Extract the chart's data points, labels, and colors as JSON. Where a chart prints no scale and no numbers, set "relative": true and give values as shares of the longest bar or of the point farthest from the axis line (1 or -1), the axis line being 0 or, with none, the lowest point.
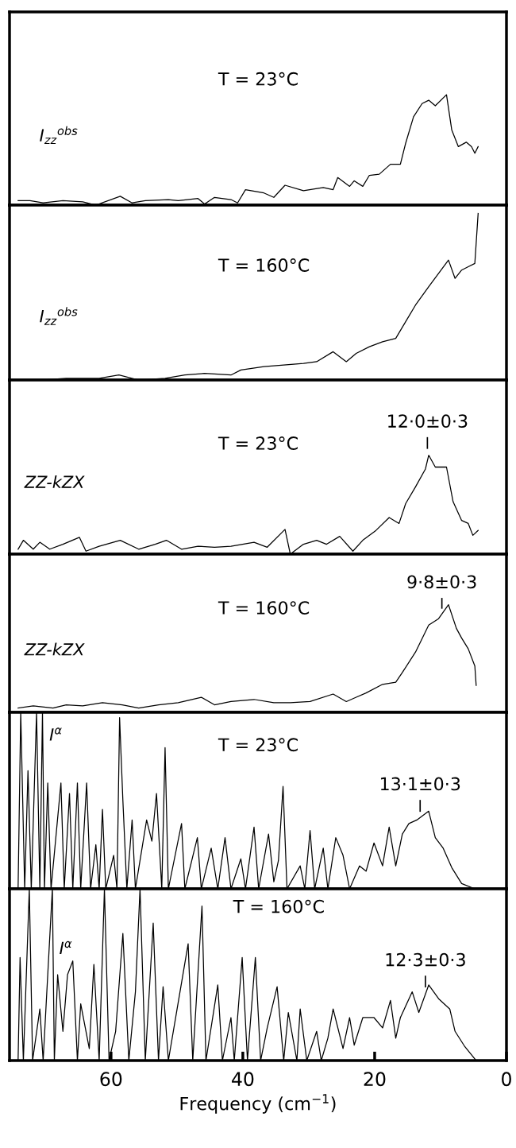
{
  "chart_data": [
    {
      "type": "line",
      "relative": true,
      "color": "#000000",
      "xlim": [
        75.4,
        0
      ],
      "tick_labels": false,
      "annotations": [
        "T = 23°C",
        "I$_{zz}$$^{obs}$"
      ],
      "x": [
        74.1,
        72.3,
        70.3,
        67.3,
        64.3,
        62.3,
        58.6,
        56.8,
        54.8,
        51.3,
        49.8,
        46.8,
        45.8,
        44.3,
        41.8,
        40.8,
        39.6,
        36.8,
        35.3,
        33.6,
        30.8,
        27.8,
        26.3,
        25.6,
        23.8,
        23.1,
        21.8,
        20.8,
        19.3,
        17.6,
        16.1,
        15.3,
        14.1,
        12.8,
        11.8,
        10.8,
        9.1,
        8.3,
        7.3,
        6.1,
        5.3,
        4.8,
        4.3
      ],
      "values": [
        0.04,
        0.04,
        0.02,
        0.04,
        0.03,
        0.0,
        0.08,
        0.02,
        0.04,
        0.05,
        0.04,
        0.06,
        0.01,
        0.07,
        0.05,
        0.02,
        0.14,
        0.11,
        0.07,
        0.18,
        0.13,
        0.16,
        0.14,
        0.25,
        0.17,
        0.22,
        0.17,
        0.27,
        0.28,
        0.37,
        0.37,
        0.56,
        0.8,
        0.92,
        0.95,
        0.9,
        1.0,
        0.68,
        0.53,
        0.57,
        0.53,
        0.47,
        0.53
      ]
    },
    {
      "type": "line",
      "relative": true,
      "color": "#000000",
      "xlim": [
        75.4,
        0
      ],
      "tick_labels": false,
      "annotations": [
        "T = 160°C",
        "I$_{zz}$$^{obs}$"
      ],
      "x": [
        74.1,
        70.8,
        66.8,
        61.8,
        58.8,
        55.8,
        51.8,
        48.8,
        45.8,
        41.8,
        40.3,
        36.8,
        33.8,
        30.8,
        28.8,
        26.3,
        24.3,
        22.8,
        20.8,
        18.8,
        16.8,
        15.3,
        13.8,
        11.8,
        10.3,
        8.8,
        7.8,
        6.8,
        5.8,
        4.8,
        4.3
      ],
      "values": [
        0.0,
        0.0,
        0.01,
        0.01,
        0.03,
        0.0,
        0.01,
        0.03,
        0.04,
        0.03,
        0.06,
        0.08,
        0.09,
        0.1,
        0.11,
        0.17,
        0.11,
        0.16,
        0.2,
        0.23,
        0.25,
        0.35,
        0.45,
        0.56,
        0.64,
        0.72,
        0.61,
        0.66,
        0.68,
        0.7,
        1.0
      ]
    },
    {
      "type": "line",
      "relative": true,
      "color": "#000000",
      "xlim": [
        75.4,
        0
      ],
      "tick_labels": false,
      "annotations": [
        "T = 23°C",
        "ZZ-kZX",
        {
          "text": "12·0±0·3",
          "x": 12.0,
          "y": 1.0
        }
      ],
      "x": [
        74.1,
        73.3,
        71.8,
        70.8,
        69.3,
        67.3,
        64.8,
        63.8,
        61.8,
        58.6,
        55.8,
        53.3,
        51.6,
        49.3,
        46.8,
        44.3,
        41.8,
        38.3,
        36.3,
        33.6,
        32.8,
        30.8,
        28.8,
        27.3,
        25.3,
        23.3,
        21.8,
        19.8,
        17.8,
        16.3,
        15.3,
        13.8,
        12.3,
        11.8,
        10.8,
        9.1,
        8.1,
        6.8,
        5.8,
        5.1,
        4.3
      ],
      "values": [
        0.05,
        0.14,
        0.05,
        0.12,
        0.05,
        0.1,
        0.17,
        0.03,
        0.08,
        0.14,
        0.05,
        0.1,
        0.14,
        0.05,
        0.08,
        0.07,
        0.08,
        0.12,
        0.07,
        0.25,
        0.0,
        0.1,
        0.14,
        0.1,
        0.18,
        0.03,
        0.14,
        0.24,
        0.37,
        0.31,
        0.51,
        0.68,
        0.86,
        1.0,
        0.88,
        0.88,
        0.53,
        0.34,
        0.31,
        0.19,
        0.24
      ]
    },
    {
      "type": "line",
      "relative": true,
      "color": "#000000",
      "xlim": [
        75.4,
        0
      ],
      "tick_labels": false,
      "annotations": [
        "T = 160°C",
        "ZZ-kZX",
        {
          "text": "9·8±0·3",
          "x": 9.8,
          "y": 0.91
        }
      ],
      "x": [
        74.1,
        71.8,
        68.8,
        66.8,
        64.3,
        61.3,
        58.3,
        55.8,
        52.8,
        49.8,
        46.3,
        44.3,
        41.8,
        38.3,
        35.3,
        32.8,
        29.8,
        26.3,
        24.3,
        22.8,
        21.3,
        18.8,
        16.8,
        15.8,
        13.8,
        11.8,
        10.3,
        8.8,
        7.6,
        6.8,
        5.8,
        4.8,
        4.6
      ],
      "values": [
        0.04,
        0.06,
        0.04,
        0.07,
        0.06,
        0.09,
        0.07,
        0.04,
        0.07,
        0.09,
        0.14,
        0.07,
        0.1,
        0.12,
        0.09,
        0.09,
        0.1,
        0.17,
        0.1,
        0.14,
        0.18,
        0.26,
        0.28,
        0.37,
        0.56,
        0.81,
        0.87,
        1.0,
        0.78,
        0.69,
        0.59,
        0.43,
        0.25
      ]
    },
    {
      "type": "line",
      "relative": true,
      "color": "#000000",
      "xlim": [
        75.4,
        0
      ],
      "tick_labels": false,
      "annotations": [
        "T = 23°C",
        "I$^{α}$",
        {
          "text": "13·1±0·3",
          "x": 13.1,
          "y": 0.4
        }
      ],
      "x": [
        74.1,
        73.7,
        73.1,
        72.6,
        72.1,
        71.3,
        70.8,
        70.4,
        70.1,
        69.6,
        69.1,
        67.6,
        67.1,
        66.3,
        65.8,
        65.1,
        64.6,
        63.7,
        63.1,
        62.3,
        61.8,
        61.3,
        60.8,
        59.6,
        59.1,
        58.7,
        58.2,
        57.6,
        56.8,
        56.3,
        54.6,
        53.8,
        53.1,
        52.3,
        51.8,
        51.3,
        49.3,
        48.8,
        46.9,
        46.3,
        44.8,
        43.8,
        42.7,
        41.8,
        40.3,
        39.6,
        38.3,
        37.6,
        36.1,
        35.3,
        34.6,
        33.9,
        33.3,
        31.3,
        30.6,
        29.8,
        29.1,
        27.8,
        27.1,
        25.9,
        24.8,
        23.8,
        22.3,
        21.3,
        20.1,
        18.8,
        17.8,
        16.8,
        15.8,
        14.8,
        13.6,
        11.8,
        10.8,
        9.6,
        8.3,
        6.8,
        4.8,
        0.8
      ],
      "values": [
        0,
        1.0,
        0,
        0.67,
        0,
        1.0,
        0,
        1.0,
        0,
        0.6,
        0,
        0.6,
        0,
        0.54,
        0,
        0.6,
        0,
        0.6,
        0,
        0.25,
        0,
        0.45,
        0,
        0.19,
        0,
        0.97,
        0.5,
        0,
        0.39,
        0,
        0.39,
        0.27,
        0.54,
        0,
        0.8,
        0,
        0.37,
        0,
        0.29,
        0,
        0.23,
        0,
        0.29,
        0,
        0.17,
        0,
        0.35,
        0,
        0.31,
        0.04,
        0.16,
        0.58,
        0,
        0.13,
        0,
        0.33,
        0,
        0.23,
        0,
        0.29,
        0.19,
        0,
        0.13,
        0.1,
        0.26,
        0.13,
        0.35,
        0.13,
        0.31,
        0.37,
        0.39,
        0.44,
        0.29,
        0.23,
        0.12,
        0.03,
        0,
        0
      ]
    },
    {
      "type": "line",
      "relative": true,
      "color": "#000000",
      "xlim": [
        75.4,
        0
      ],
      "xticks": [
        60,
        40,
        20,
        0
      ],
      "xlabel": "Frequency (cm$^{−1}$)",
      "tick_labels": "x",
      "annotations": [
        "T = 160°C",
        "I$^{α}$",
        {
          "text": "12·3±0·3",
          "x": 12.3,
          "y": 0.39
        }
      ],
      "x": [
        74.1,
        73.8,
        73.3,
        72.4,
        71.9,
        70.8,
        70.3,
        68.9,
        68.6,
        68.1,
        67.3,
        66.6,
        65.8,
        65.1,
        64.6,
        63.3,
        62.6,
        61.8,
        61.0,
        60.3,
        59.3,
        58.2,
        57.3,
        56.3,
        55.6,
        54.8,
        53.6,
        52.8,
        52.1,
        51.3,
        48.3,
        47.6,
        46.2,
        45.6,
        43.8,
        43.1,
        41.8,
        41.3,
        40.1,
        39.3,
        38.1,
        37.3,
        36.3,
        34.8,
        33.8,
        33.1,
        31.8,
        31.3,
        30.3,
        28.8,
        28.1,
        27.1,
        26.3,
        24.8,
        23.8,
        23.1,
        21.8,
        20.1,
        18.8,
        17.6,
        16.8,
        16.1,
        14.3,
        13.3,
        11.8,
        10.3,
        8.6,
        7.8,
        6.3,
        4.6
      ],
      "values": [
        0,
        0.6,
        0,
        1.0,
        0,
        0.3,
        0,
        1.0,
        0,
        0.5,
        0.17,
        0.5,
        0.58,
        0,
        0.33,
        0.07,
        0.56,
        0,
        1.0,
        0,
        0.17,
        0.74,
        0,
        0.4,
        1.0,
        0,
        0.8,
        0,
        0.43,
        0,
        0.68,
        0,
        0.9,
        0,
        0.44,
        0,
        0.25,
        0,
        0.6,
        0,
        0.6,
        0,
        0.19,
        0.43,
        0,
        0.28,
        0,
        0.3,
        0,
        0.17,
        0,
        0.13,
        0.3,
        0.07,
        0.25,
        0.09,
        0.25,
        0.25,
        0.19,
        0.35,
        0.13,
        0.25,
        0.4,
        0.28,
        0.44,
        0.36,
        0.3,
        0.17,
        0.08,
        0
      ]
    }
  ]
}
